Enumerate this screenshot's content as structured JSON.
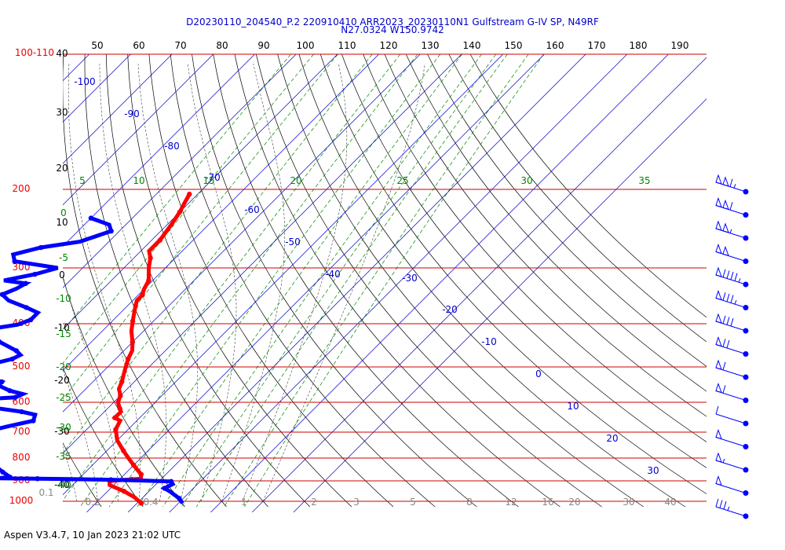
{
  "header": {
    "line1": "D20230110_204540_P.2 220910410 ARR2023_20230110N1 Gulfstream G-IV SP, N49RF",
    "line2": "N27.0324 W150.9742"
  },
  "footer": "Aspen V3.4.7, 10 Jan 2023  21:02 UTC",
  "colors": {
    "temp": "#ff0000",
    "dewpoint": "#0000ff",
    "isobar": "#cc0000",
    "isotherm": "#0000cc",
    "mixing": "#008800",
    "adiabat": "#000000"
  },
  "chart_data": {
    "type": "line",
    "title": "D20230110_204540_P.2 220910410 ARR2023_20230110N1 Gulfstream G-IV SP, N49RF",
    "subtitle": "N27.0324 W150.9742",
    "top_axis_ticks": [
      "50",
      "60",
      "70",
      "80",
      "90",
      "100",
      "110",
      "120",
      "130",
      "140",
      "150",
      "160",
      "170",
      "180",
      "190"
    ],
    "pressure_labels": [
      "100-110",
      "200",
      "300",
      "400",
      "500",
      "600",
      "700",
      "800",
      "900",
      "1000"
    ],
    "isotherm_labels": [
      "-100",
      "-90",
      "-80",
      "-70",
      "-60",
      "-50",
      "-40",
      "-30",
      "-20",
      "-10",
      "0",
      "10",
      "20",
      "30"
    ],
    "height_labels": [
      "40",
      "30",
      "20",
      "10",
      "0",
      "-10",
      "-20",
      "-30",
      "-40"
    ],
    "mixing_ratio_top": [
      "5",
      "10",
      "15",
      "20",
      "25",
      "30",
      "35"
    ],
    "mixing_ratio_left": [
      "0",
      "-5",
      "-10",
      "-15",
      "-20",
      "-25",
      "-30",
      "-35",
      "-40"
    ],
    "bottom_labels": [
      "0.1",
      "0.2",
      "0.4",
      "1",
      "2",
      "3",
      "5",
      "8",
      "12",
      "16",
      "20",
      "30",
      "40"
    ],
    "series": [
      {
        "name": "",
        "points": [
          [
            -52,
            205
          ],
          [
            -51,
            215
          ],
          [
            -50,
            225
          ],
          [
            -49,
            240
          ],
          [
            -48,
            260
          ],
          [
            -48,
            275
          ],
          [
            -46,
            285
          ],
          [
            -44,
            300
          ],
          [
            -41,
            320
          ],
          [
            -40,
            335
          ],
          [
            -39,
            345
          ],
          [
            -39,
            355
          ],
          [
            -38,
            365
          ],
          [
            -37,
            375
          ],
          [
            -35,
            395
          ],
          [
            -33,
            415
          ],
          [
            -30,
            440
          ],
          [
            -28,
            460
          ],
          [
            -27,
            480
          ],
          [
            -25,
            510
          ],
          [
            -23,
            540
          ],
          [
            -22,
            560
          ],
          [
            -20,
            580
          ],
          [
            -19,
            600
          ],
          [
            -17,
            620
          ],
          [
            -16,
            630
          ],
          [
            -16,
            650
          ],
          [
            -14,
            660
          ],
          [
            -13,
            690
          ],
          [
            -10,
            730
          ],
          [
            -6,
            770
          ],
          [
            -3,
            800
          ],
          [
            0,
            830
          ],
          [
            2,
            850
          ],
          [
            4,
            870
          ],
          [
            5,
            890
          ],
          [
            3,
            893
          ],
          [
            0,
            897
          ],
          [
            -2,
            901
          ],
          [
            -1,
            920
          ],
          [
            4,
            950
          ],
          [
            8,
            980
          ],
          [
            11,
            1010
          ]
        ]
      },
      {
        "name": "",
        "points": [
          [
            -70,
            232
          ],
          [
            -64,
            240
          ],
          [
            -62,
            248
          ],
          [
            -67,
            262
          ],
          [
            -75,
            270
          ],
          [
            -80,
            280
          ],
          [
            -78,
            290
          ],
          [
            -66,
            300
          ],
          [
            -70,
            310
          ],
          [
            -76,
            320
          ],
          [
            -70,
            325
          ],
          [
            -71,
            334
          ],
          [
            -73,
            344
          ],
          [
            -70,
            355
          ],
          [
            -64,
            368
          ],
          [
            -60,
            378
          ],
          [
            -60,
            392
          ],
          [
            -62,
            402
          ],
          [
            -67,
            410
          ],
          [
            -70,
            418
          ],
          [
            -65,
            425
          ],
          [
            -62,
            440
          ],
          [
            -56,
            460
          ],
          [
            -54,
            470
          ],
          [
            -55,
            480
          ],
          [
            -58,
            490
          ],
          [
            -58,
            500
          ],
          [
            -60,
            510
          ],
          [
            -61,
            520
          ],
          [
            -56,
            530
          ],
          [
            -52,
            540
          ],
          [
            -52,
            550
          ],
          [
            -48,
            565
          ],
          [
            -44,
            575
          ],
          [
            -45,
            585
          ],
          [
            -52,
            590
          ],
          [
            -60,
            595
          ],
          [
            -58,
            605
          ],
          [
            -52,
            610
          ],
          [
            -46,
            620
          ],
          [
            -40,
            630
          ],
          [
            -36,
            640
          ],
          [
            -35,
            660
          ],
          [
            -40,
            680
          ],
          [
            -44,
            700
          ],
          [
            -47,
            715
          ],
          [
            -45,
            735
          ],
          [
            -44,
            760
          ],
          [
            -40,
            790
          ],
          [
            -35,
            820
          ],
          [
            -30,
            860
          ],
          [
            -28,
            875
          ],
          [
            -27,
            883
          ],
          [
            -30,
            888
          ],
          [
            -20,
            890
          ],
          [
            -12,
            892
          ],
          [
            -2,
            895
          ],
          [
            5,
            898
          ],
          [
            13,
            903
          ],
          [
            14,
            915
          ],
          [
            13,
            935
          ],
          [
            15,
            950
          ],
          [
            19,
            985
          ],
          [
            21,
            1010
          ]
        ]
      }
    ],
    "wind_barbs": {
      "count": 15,
      "knots": [
        115,
        110,
        105,
        100,
        95,
        85,
        80,
        70,
        60,
        60,
        10,
        50,
        55,
        50,
        35
      ]
    }
  }
}
